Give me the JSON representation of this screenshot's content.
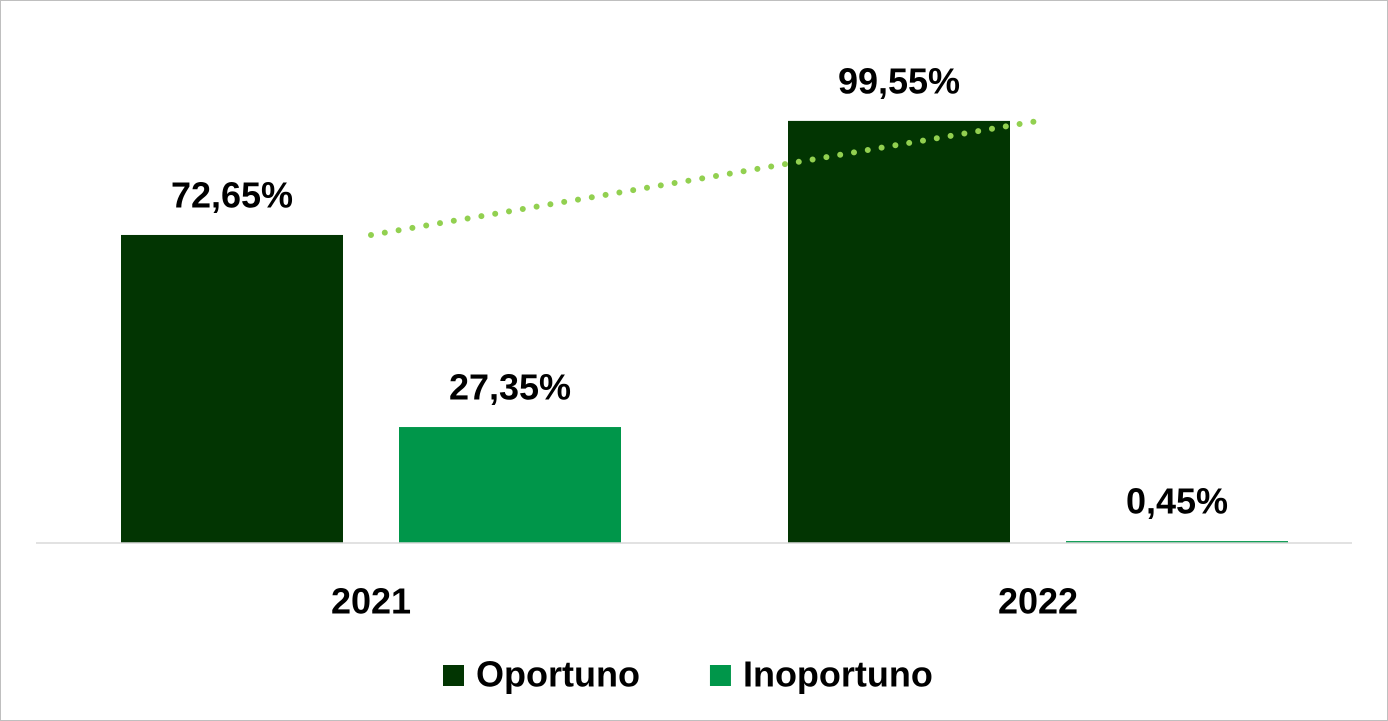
{
  "chart_data": {
    "type": "bar",
    "categories": [
      "2021",
      "2022"
    ],
    "series": [
      {
        "name": "Oportuno",
        "color": "#023502",
        "values": [
          72.65,
          99.55
        ],
        "value_labels": [
          "72,65%",
          "99,55%"
        ],
        "trendline": true,
        "trendline_color": "#92d050"
      },
      {
        "name": "Inoportuno",
        "color": "#00964a",
        "values": [
          27.35,
          0.45
        ],
        "value_labels": [
          "27,35%",
          "0,45%"
        ]
      }
    ],
    "ylim": [
      0,
      100
    ],
    "legend": "bottom"
  }
}
